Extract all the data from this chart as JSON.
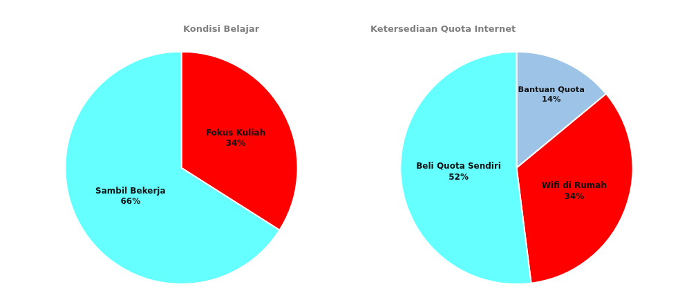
{
  "chart_data": [
    {
      "type": "pie",
      "title": "Kondisi Belajar",
      "categories": [
        "Fokus Kuliah",
        "Sambil Bekerja"
      ],
      "values": [
        34,
        66
      ],
      "value_labels": [
        "34%",
        "66%"
      ],
      "colors": [
        "#ff0000",
        "#66ffff"
      ]
    },
    {
      "type": "pie",
      "title": "Ketersediaan Quota Internet",
      "categories": [
        "Bantuan Quota",
        "Wifi di Rumah",
        "Beli Quota Sendiri"
      ],
      "values": [
        14,
        34,
        52
      ],
      "value_labels": [
        "14%",
        "34%",
        "52%"
      ],
      "colors": [
        "#9dc3e6",
        "#ff0000",
        "#66ffff"
      ]
    }
  ]
}
